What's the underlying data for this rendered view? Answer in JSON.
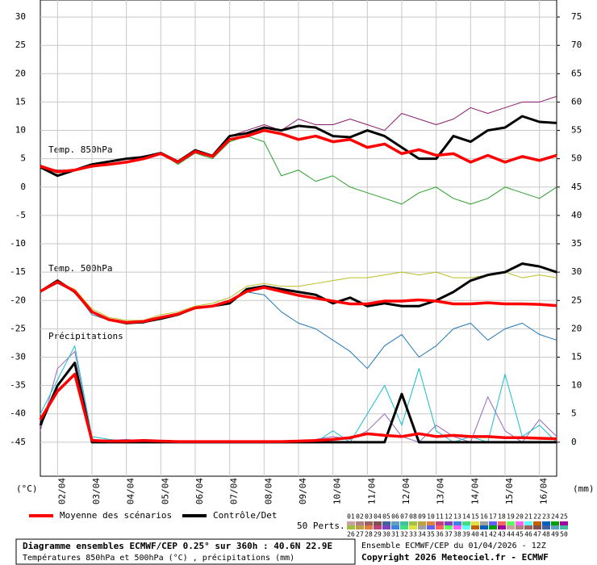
{
  "chart_data": {
    "type": "line",
    "annotations": [
      "Temp. 850hPa",
      "Temp. 500hPa",
      "Précipitations"
    ],
    "ylabel": "(°C)",
    "y2label": "(mm)",
    "x": [
      0,
      12,
      24,
      36,
      48,
      60,
      72,
      84,
      96,
      108,
      120,
      132,
      144,
      156,
      168,
      180,
      192,
      204,
      216,
      228,
      240,
      252,
      264,
      276,
      288,
      300,
      312,
      324,
      336,
      348,
      360
    ],
    "xlim": [
      0,
      360
    ],
    "xticks": [
      {
        "value": 12,
        "label": "02/04"
      },
      {
        "value": 36,
        "label": "03/04"
      },
      {
        "value": 60,
        "label": "04/04"
      },
      {
        "value": 84,
        "label": "05/04"
      },
      {
        "value": 108,
        "label": "06/04"
      },
      {
        "value": 132,
        "label": "07/04"
      },
      {
        "value": 156,
        "label": "08/04"
      },
      {
        "value": 180,
        "label": "09/04"
      },
      {
        "value": 204,
        "label": "10/04"
      },
      {
        "value": 228,
        "label": "11/04"
      },
      {
        "value": 252,
        "label": "12/04"
      },
      {
        "value": 276,
        "label": "13/04"
      },
      {
        "value": 300,
        "label": "14/04"
      },
      {
        "value": 324,
        "label": "15/04"
      },
      {
        "value": 348,
        "label": "16/04"
      }
    ],
    "ylim": [
      -51,
      33
    ],
    "yticks": [
      30,
      25,
      20,
      15,
      10,
      5,
      0,
      -5,
      -10,
      -15,
      -20,
      -25,
      -30,
      -35,
      -40,
      -45
    ],
    "y2lim": [
      -6,
      78
    ],
    "y2ticks": [
      75,
      70,
      65,
      60,
      55,
      50,
      45,
      40,
      35,
      30,
      25,
      20,
      15,
      10,
      5,
      0
    ],
    "grid": true,
    "series": [
      {
        "color": "#2ca02c",
        "values": [
          3.5,
          2.5,
          3,
          4,
          4,
          4.5,
          5,
          6,
          4,
          6,
          5,
          8,
          9,
          8,
          2,
          3,
          1,
          2,
          0,
          -1,
          -2,
          -3,
          -1,
          0,
          -2,
          -3,
          -2,
          0,
          -1,
          -2,
          0
        ]
      },
      {
        "color": "#8b1a6b",
        "values": [
          3.5,
          3,
          3,
          3.5,
          4,
          4.5,
          5.5,
          6,
          4.5,
          6.5,
          5.5,
          9,
          10,
          11,
          10,
          12,
          11,
          11,
          12,
          11,
          10,
          13,
          12,
          11,
          12,
          14,
          13,
          14,
          15,
          15,
          16
        ]
      },
      {
        "color": "#1f77b4",
        "values": [
          -18.5,
          -17,
          -18.5,
          -22.5,
          -23.5,
          -24,
          -24,
          -23,
          -22.5,
          -21.5,
          -21,
          -20,
          -18.5,
          -19,
          -22,
          -24,
          -25,
          -27,
          -29,
          -32,
          -28,
          -26,
          -30,
          -28,
          -25,
          -24,
          -27,
          -25,
          -24,
          -26,
          -27
        ]
      },
      {
        "color": "#bcbd22",
        "values": [
          -18.3,
          -16.8,
          -18,
          -21.5,
          -23,
          -23.5,
          -23.5,
          -22.5,
          -22,
          -21,
          -20.5,
          -19.5,
          -17.5,
          -17,
          -17.5,
          -17.5,
          -17,
          -16.5,
          -16,
          -16,
          -15.5,
          -15,
          -15.5,
          -15,
          -16,
          -16,
          -15.5,
          -15,
          -16,
          -15.5,
          -16
        ]
      },
      {
        "color": "#9467bd",
        "axis": "y2",
        "values": [
          2,
          13,
          16,
          0.5,
          0.3,
          0.5,
          0.2,
          0,
          0,
          0,
          0,
          0,
          0,
          0,
          0,
          0,
          0.5,
          1,
          0.5,
          2,
          5,
          1,
          0,
          3,
          1,
          0,
          8,
          2,
          0,
          4,
          1
        ]
      },
      {
        "color": "#17becf",
        "axis": "y2",
        "values": [
          5,
          11,
          17,
          1,
          0.5,
          0.2,
          0.5,
          0.3,
          0,
          0,
          0,
          0,
          0,
          0.2,
          0,
          0,
          0,
          2,
          0,
          5,
          10,
          3,
          13,
          2,
          0,
          1,
          0,
          12,
          1,
          3,
          0
        ]
      },
      {
        "color": "#000000",
        "width": 3,
        "values": [
          3.5,
          2,
          3,
          4,
          4.5,
          5,
          5.3,
          6,
          4.5,
          6.5,
          5.5,
          9,
          9.5,
          10.5,
          10,
          10.8,
          10.5,
          9,
          8.8,
          10,
          9,
          7,
          5,
          5,
          9,
          8,
          10,
          10.5,
          12.5,
          11.5,
          11.3
        ]
      },
      {
        "color": "#ff0000",
        "width": 3.5,
        "values": [
          3.7,
          2.7,
          3,
          3.7,
          4,
          4.4,
          5,
          5.9,
          4.4,
          6.3,
          5.4,
          8.4,
          9,
          10,
          9.4,
          8.4,
          9,
          8,
          8.4,
          7,
          7.6,
          5.9,
          6.6,
          5.6,
          5.9,
          4.4,
          5.6,
          4.4,
          5.4,
          4.7,
          5.6
        ]
      },
      {
        "color": "#000000",
        "width": 3,
        "values": [
          -18.4,
          -16.5,
          -18.5,
          -22,
          -23.4,
          -24,
          -23.8,
          -23.2,
          -22.5,
          -21.3,
          -21,
          -20.5,
          -18,
          -17.5,
          -18,
          -18.5,
          -19,
          -20.5,
          -19.5,
          -21,
          -20.5,
          -21,
          -21,
          -20,
          -18.5,
          -16.5,
          -15.5,
          -15,
          -13.5,
          -14,
          -15
        ]
      },
      {
        "color": "#ff0000",
        "width": 3.5,
        "values": [
          -18.4,
          -16.7,
          -18.4,
          -22,
          -23.4,
          -23.9,
          -23.7,
          -23,
          -22.4,
          -21.3,
          -21,
          -20.1,
          -18.4,
          -17.7,
          -18.4,
          -19.1,
          -19.6,
          -20.1,
          -20.6,
          -20.6,
          -20.1,
          -20.1,
          -19.9,
          -20.1,
          -20.6,
          -20.6,
          -20.4,
          -20.6,
          -20.6,
          -20.7,
          -20.9
        ]
      },
      {
        "color": "#000000",
        "width": 3,
        "axis": "y2",
        "values": [
          3,
          10,
          14,
          0,
          0,
          0,
          0,
          0,
          0,
          0,
          0,
          0,
          0,
          0,
          0,
          0,
          0,
          0,
          0,
          0,
          0,
          8.5,
          0,
          0,
          0,
          0,
          0,
          0,
          0,
          0,
          0
        ]
      },
      {
        "color": "#ff0000",
        "width": 3.5,
        "axis": "y2",
        "values": [
          4,
          9,
          12,
          0.3,
          0.2,
          0.2,
          0.3,
          0.2,
          0.1,
          0.1,
          0.1,
          0.1,
          0.1,
          0.1,
          0.1,
          0.2,
          0.3,
          0.5,
          0.8,
          1.5,
          1.2,
          1,
          1.5,
          1,
          1.2,
          1,
          1,
          0.8,
          0.8,
          0.7,
          0.6
        ]
      }
    ],
    "legend": [
      {
        "name": "Moyenne des scénarios",
        "color": "#ff0000"
      },
      {
        "name": "Contrôle/Det",
        "color": "#000000"
      }
    ],
    "members_label": "50 Perts.",
    "members_top": [
      "01",
      "02",
      "03",
      "04",
      "05",
      "06",
      "07",
      "08",
      "09",
      "10",
      "11",
      "12",
      "13",
      "14",
      "15",
      "16",
      "17",
      "18",
      "19",
      "20",
      "21",
      "22",
      "23",
      "24",
      "25"
    ],
    "members_bottom": [
      "26",
      "27",
      "28",
      "29",
      "30",
      "31",
      "32",
      "33",
      "34",
      "35",
      "36",
      "37",
      "38",
      "39",
      "40",
      "41",
      "42",
      "43",
      "44",
      "45",
      "46",
      "47",
      "48",
      "49",
      "50"
    ],
    "title": "Diagramme ensembles ECMWF/CEP 0.25° sur 360h : 40.6N 22.9E",
    "subtitle": "Températures 850hPa et 500hPa (°C) , précipitations (mm)",
    "run": "Ensemble ECMWF/CEP du 01/04/2026 - 12Z",
    "copyright": "Copyright 2026 Meteociel.fr - ECMWF"
  }
}
